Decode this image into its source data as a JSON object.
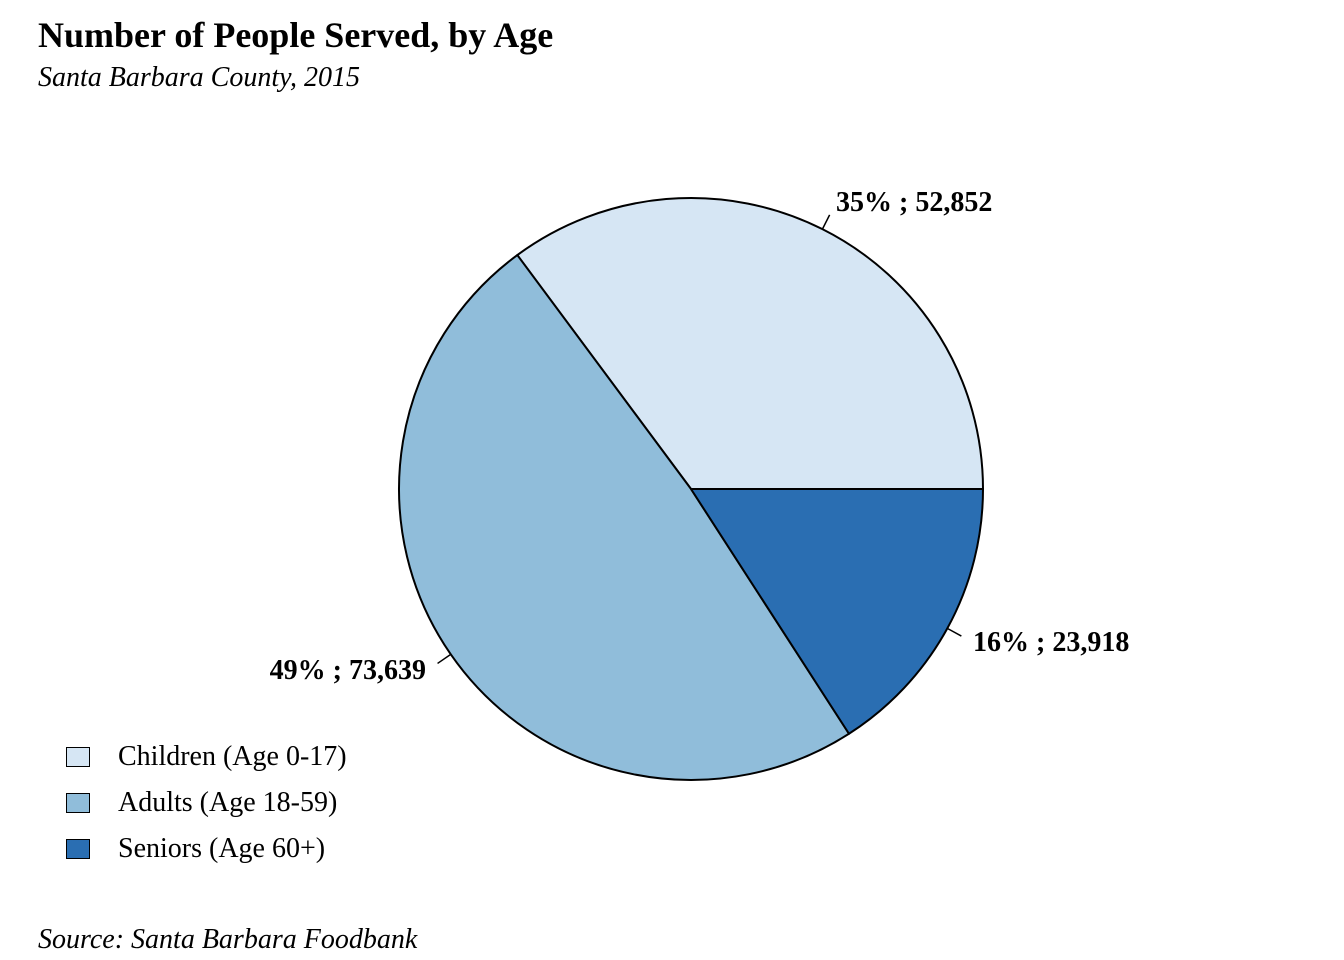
{
  "chart_data": {
    "type": "pie",
    "title": "Number of People Served, by Age",
    "subtitle": "Santa Barbara County, 2015",
    "source": "Source: Santa Barbara Foodbank",
    "categories": [
      "Children (Age 0-17)",
      "Adults (Age 18-59)",
      "Seniors (Age 60+)"
    ],
    "values": [
      52852,
      73639,
      23918
    ],
    "percent_labels": [
      "35%",
      "49%",
      "16%"
    ],
    "value_labels": [
      "52,852",
      "73,639",
      "23,918"
    ],
    "colors": [
      "#d6e6f4",
      "#90bdda",
      "#2a6eb2"
    ],
    "slice_order_note": "counter-clockwise from 3 o'clock",
    "legend_position": "bottom-left"
  }
}
